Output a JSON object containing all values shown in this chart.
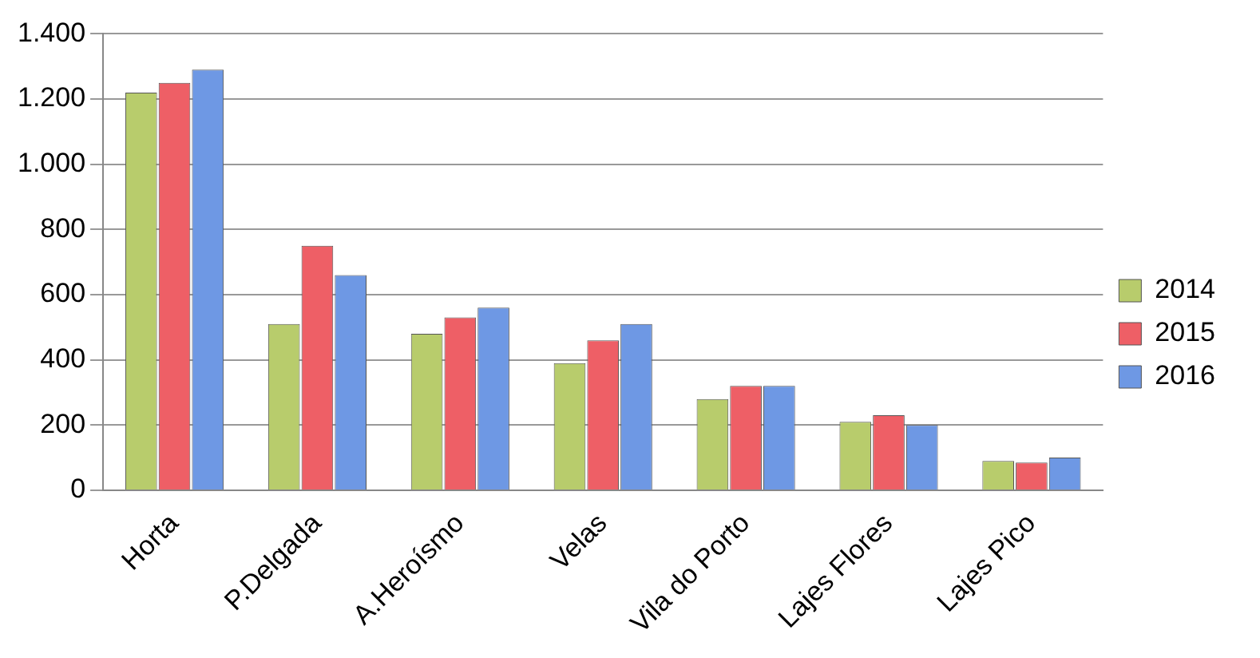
{
  "chart_data": {
    "type": "bar",
    "categories": [
      "Horta",
      "P.Delgada",
      "A.Heroísmo",
      "Velas",
      "Vila do Porto",
      "Lajes Flores",
      "Lajes Pico"
    ],
    "series": [
      {
        "name": "2014",
        "color": "#b8cc6c",
        "values": [
          1220,
          510,
          480,
          390,
          280,
          210,
          90
        ]
      },
      {
        "name": "2015",
        "color": "#ee5f66",
        "values": [
          1250,
          750,
          530,
          460,
          320,
          230,
          85
        ]
      },
      {
        "name": "2016",
        "color": "#6e98e4",
        "values": [
          1290,
          660,
          560,
          510,
          320,
          200,
          100
        ]
      }
    ],
    "ylim": [
      0,
      1400
    ],
    "yticks": [
      0,
      200,
      400,
      600,
      800,
      {
        "value": 1000,
        "label": "1.000"
      },
      {
        "value": 1200,
        "label": "1.200"
      },
      {
        "value": 1400,
        "label": "1.400"
      }
    ],
    "grid": "y",
    "legend": "right"
  }
}
